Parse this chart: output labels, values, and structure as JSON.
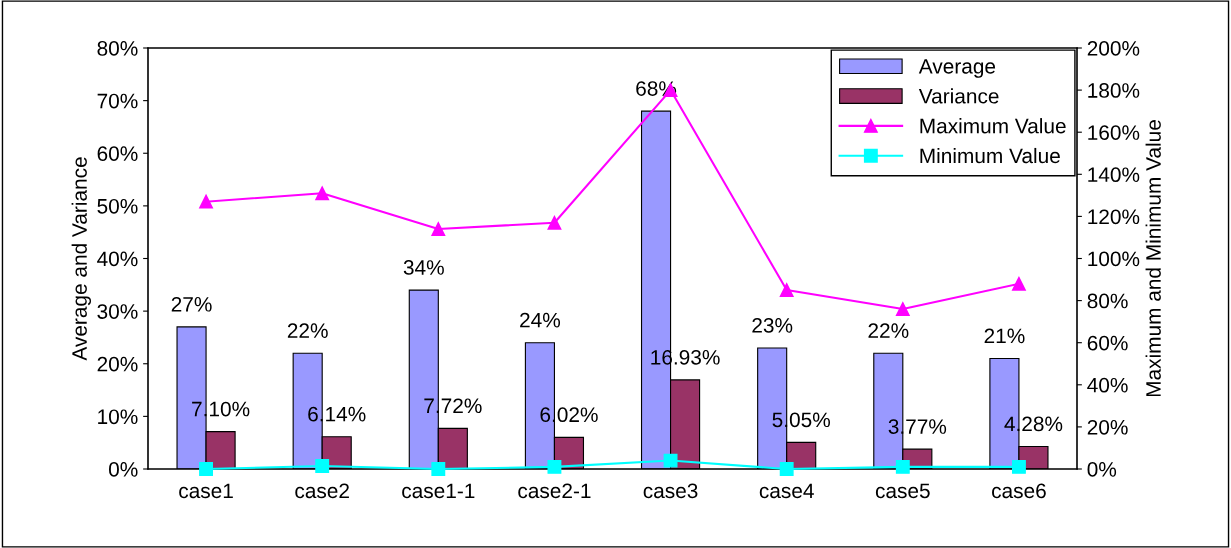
{
  "chart_data": {
    "type": "bar",
    "categories": [
      "case1",
      "case2",
      "case1-1",
      "case2-1",
      "case3",
      "case4",
      "case5",
      "case6"
    ],
    "ylabel": "Average and Variance",
    "y2label": "Maximum and Minimum Value",
    "ylim": [
      0,
      80
    ],
    "yticks": [
      {
        "value": 0,
        "label": "0%"
      },
      {
        "value": 10,
        "label": "10%"
      },
      {
        "value": 20,
        "label": "20%"
      },
      {
        "value": 30,
        "label": "30%"
      },
      {
        "value": 40,
        "label": "40%"
      },
      {
        "value": 50,
        "label": "50%"
      },
      {
        "value": 60,
        "label": "60%"
      },
      {
        "value": 70,
        "label": "70%"
      },
      {
        "value": 80,
        "label": "80%"
      }
    ],
    "y2lim": [
      0,
      200
    ],
    "y2ticks": [
      {
        "value": 0,
        "label": "0%"
      },
      {
        "value": 20,
        "label": "20%"
      },
      {
        "value": 40,
        "label": "40%"
      },
      {
        "value": 60,
        "label": "60%"
      },
      {
        "value": 80,
        "label": "80%"
      },
      {
        "value": 100,
        "label": "100%"
      },
      {
        "value": 120,
        "label": "120%"
      },
      {
        "value": 140,
        "label": "140%"
      },
      {
        "value": 160,
        "label": "160%"
      },
      {
        "value": 180,
        "label": "180%"
      },
      {
        "value": 200,
        "label": "200%"
      }
    ],
    "grid": false,
    "legend": "top right",
    "series": [
      {
        "name": "Average",
        "color": "#9999ff",
        "values": [
          27,
          22,
          34,
          24,
          68,
          23,
          22,
          21
        ],
        "value_labels": [
          "27%",
          "22%",
          "34%",
          "24%",
          "68%",
          "23%",
          "22%",
          "21%"
        ]
      },
      {
        "name": "Variance",
        "color": "#993366",
        "values": [
          7.1,
          6.14,
          7.72,
          6.02,
          16.93,
          5.05,
          3.77,
          4.28
        ],
        "value_labels": [
          "7.10%",
          "6.14%",
          "7.72%",
          "6.02%",
          "16.93%",
          "5.05%",
          "3.77%",
          "4.28%"
        ]
      },
      {
        "name": "Maximum Value",
        "type": "line",
        "axis": "y2",
        "marker": "triangle",
        "color": "#ff00ff",
        "values": [
          127,
          131,
          114,
          117,
          180,
          85,
          76,
          88
        ]
      },
      {
        "name": "Minimum Value",
        "type": "line",
        "axis": "y2",
        "marker": "square",
        "color": "#00ffff",
        "values": [
          0,
          1.4,
          0,
          1,
          4,
          0,
          1,
          1
        ]
      }
    ]
  }
}
